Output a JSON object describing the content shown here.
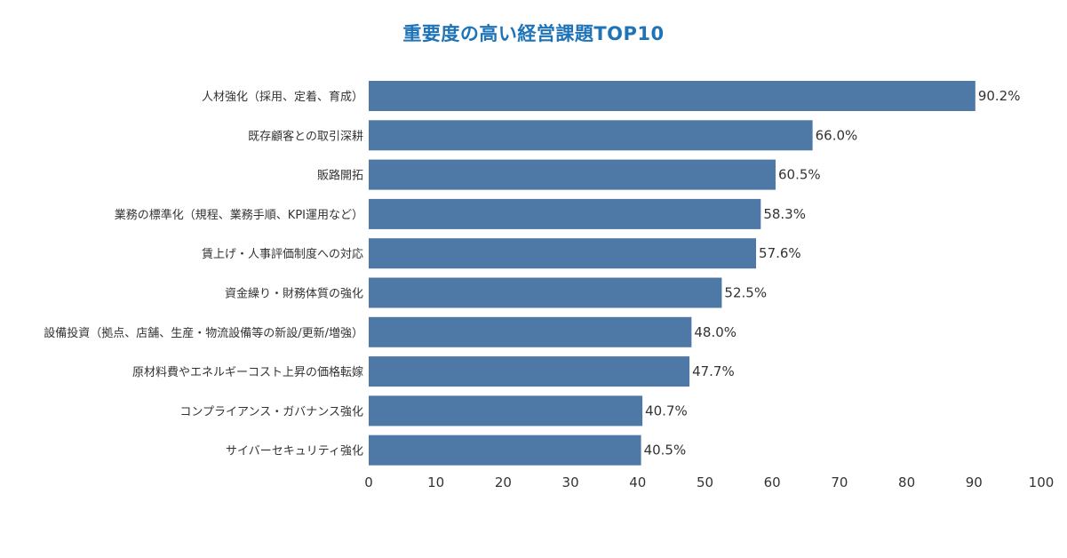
{
  "chart_data": {
    "type": "bar",
    "orientation": "horizontal",
    "title": "重要度の高い経営課題TOP10",
    "xlabel": "",
    "ylabel": "",
    "xlim": [
      0,
      100
    ],
    "x_ticks": [
      "0",
      "10",
      "20",
      "30",
      "40",
      "50",
      "60",
      "70",
      "80",
      "90",
      "100"
    ],
    "grid": false,
    "legend": "none",
    "bar_color": "#4e78a6",
    "title_color": "#1f74b8",
    "categories": [
      "人材強化（採用、定着、育成）",
      "既存顧客との取引深耕",
      "販路開拓",
      "業務の標準化（規程、業務手順、KPI運用など）",
      "賃上げ・人事評価制度への対応",
      "資金繰り・財務体質の強化",
      "設備投資（拠点、店舗、生産・物流設備等の新設/更新/増強）",
      "原材料費やエネルギーコスト上昇の価格転嫁",
      "コンプライアンス・ガバナンス強化",
      "サイバーセキュリティ強化"
    ],
    "values": [
      90.2,
      66.0,
      60.5,
      58.3,
      57.6,
      52.5,
      48.0,
      47.7,
      40.7,
      40.5
    ],
    "data_labels": [
      "90.2%",
      "66.0%",
      "60.5%",
      "58.3%",
      "57.6%",
      "52.5%",
      "48.0%",
      "47.7%",
      "40.7%",
      "40.5%"
    ]
  }
}
